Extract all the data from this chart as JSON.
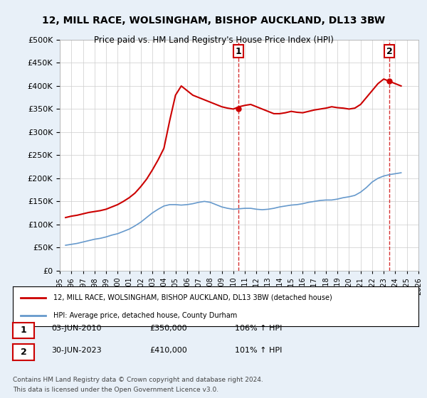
{
  "title": "12, MILL RACE, WOLSINGHAM, BISHOP AUCKLAND, DL13 3BW",
  "subtitle": "Price paid vs. HM Land Registry's House Price Index (HPI)",
  "legend_line1": "12, MILL RACE, WOLSINGHAM, BISHOP AUCKLAND, DL13 3BW (detached house)",
  "legend_line2": "HPI: Average price, detached house, County Durham",
  "sale1_date": "03-JUN-2010",
  "sale1_price": 350000,
  "sale1_label": "1",
  "sale1_pct": "106% ↑ HPI",
  "sale2_date": "30-JUN-2023",
  "sale2_price": 410000,
  "sale2_label": "2",
  "sale2_pct": "101% ↑ HPI",
  "footer1": "Contains HM Land Registry data © Crown copyright and database right 2024.",
  "footer2": "This data is licensed under the Open Government Licence v3.0.",
  "ylim": [
    0,
    500000
  ],
  "yticks": [
    0,
    50000,
    100000,
    150000,
    200000,
    250000,
    300000,
    350000,
    400000,
    450000,
    500000
  ],
  "line_color_red": "#cc0000",
  "line_color_blue": "#6699cc",
  "background_color": "#e8f0f8",
  "plot_bg": "#ffffff",
  "grid_color": "#cccccc",
  "title_color": "#000000",
  "hpi_data_x": [
    1995.5,
    1996.0,
    1996.5,
    1997.0,
    1997.5,
    1998.0,
    1998.5,
    1999.0,
    1999.5,
    2000.0,
    2000.5,
    2001.0,
    2001.5,
    2002.0,
    2002.5,
    2003.0,
    2003.5,
    2004.0,
    2004.5,
    2005.0,
    2005.5,
    2006.0,
    2006.5,
    2007.0,
    2007.5,
    2008.0,
    2008.5,
    2009.0,
    2009.5,
    2010.0,
    2010.5,
    2011.0,
    2011.5,
    2012.0,
    2012.5,
    2013.0,
    2013.5,
    2014.0,
    2014.5,
    2015.0,
    2015.5,
    2016.0,
    2016.5,
    2017.0,
    2017.5,
    2018.0,
    2018.5,
    2019.0,
    2019.5,
    2020.0,
    2020.5,
    2021.0,
    2021.5,
    2022.0,
    2022.5,
    2023.0,
    2023.5,
    2024.0,
    2024.5
  ],
  "hpi_data_y": [
    55000,
    57000,
    59000,
    62000,
    65000,
    68000,
    70000,
    73000,
    77000,
    80000,
    85000,
    90000,
    97000,
    105000,
    115000,
    125000,
    133000,
    140000,
    143000,
    143000,
    142000,
    143000,
    145000,
    148000,
    150000,
    148000,
    143000,
    138000,
    135000,
    133000,
    134000,
    135000,
    135000,
    133000,
    132000,
    133000,
    135000,
    138000,
    140000,
    142000,
    143000,
    145000,
    148000,
    150000,
    152000,
    153000,
    153000,
    155000,
    158000,
    160000,
    163000,
    170000,
    180000,
    192000,
    200000,
    205000,
    208000,
    210000,
    212000
  ],
  "price_data_x": [
    1995.5,
    1996.0,
    1996.5,
    1997.0,
    1997.5,
    1998.0,
    1998.5,
    1999.0,
    1999.5,
    2000.0,
    2000.5,
    2001.0,
    2001.5,
    2002.0,
    2002.5,
    2003.0,
    2003.5,
    2004.0,
    2004.5,
    2005.0,
    2005.5,
    2006.0,
    2006.5,
    2007.0,
    2007.5,
    2008.0,
    2008.5,
    2009.0,
    2009.5,
    2010.0,
    2010.5,
    2011.0,
    2011.5,
    2012.0,
    2012.5,
    2013.0,
    2013.5,
    2014.0,
    2014.5,
    2015.0,
    2015.5,
    2016.0,
    2016.5,
    2017.0,
    2017.5,
    2018.0,
    2018.5,
    2019.0,
    2019.5,
    2020.0,
    2020.5,
    2021.0,
    2021.5,
    2022.0,
    2022.5,
    2023.0,
    2023.5,
    2024.0,
    2024.5
  ],
  "price_data_y": [
    115000,
    118000,
    120000,
    123000,
    126000,
    128000,
    130000,
    133000,
    138000,
    143000,
    150000,
    158000,
    168000,
    182000,
    198000,
    218000,
    240000,
    265000,
    325000,
    380000,
    400000,
    390000,
    380000,
    375000,
    370000,
    365000,
    360000,
    355000,
    352000,
    350000,
    355000,
    358000,
    360000,
    355000,
    350000,
    345000,
    340000,
    340000,
    342000,
    345000,
    343000,
    342000,
    345000,
    348000,
    350000,
    352000,
    355000,
    353000,
    352000,
    350000,
    352000,
    360000,
    375000,
    390000,
    405000,
    415000,
    410000,
    405000,
    400000
  ],
  "marker1_x": 2010.42,
  "marker1_y": 350000,
  "marker2_x": 2023.5,
  "marker2_y": 410000,
  "xmin": 1995,
  "xmax": 2026
}
